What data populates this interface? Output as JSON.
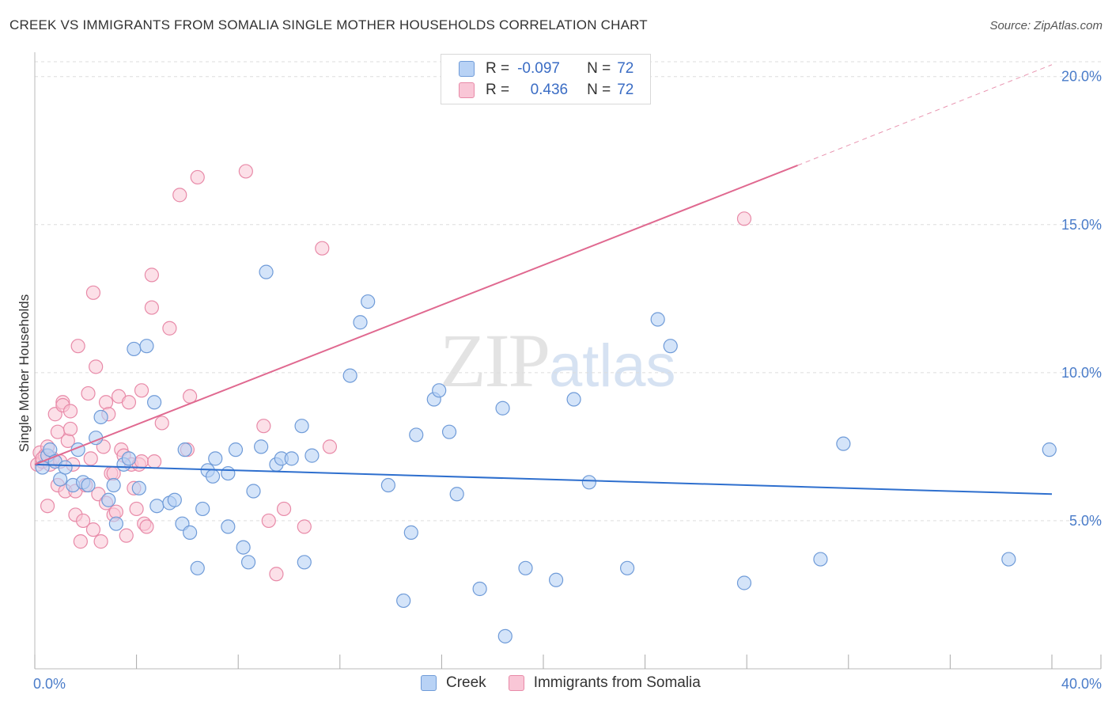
{
  "header": {
    "title": "CREEK VS IMMIGRANTS FROM SOMALIA SINGLE MOTHER HOUSEHOLDS CORRELATION CHART",
    "source": "Source: ZipAtlas.com"
  },
  "watermark": {
    "zip": "ZIP",
    "atlas": "atlas"
  },
  "legend": {
    "rows": [
      {
        "r_label": "R =",
        "r_value": "-0.097",
        "n_label": "N =",
        "n_value": "72"
      },
      {
        "r_label": "R =",
        "r_value": "0.436",
        "n_label": "N =",
        "n_value": "72"
      }
    ]
  },
  "colors": {
    "creek_fill": "#b8d2f5",
    "creek_stroke": "#6f9bd8",
    "creek_line": "#2e6fce",
    "somalia_fill": "#f9c6d6",
    "somalia_stroke": "#e88aa8",
    "somalia_line": "#e06990",
    "tick_text": "#4a7cc9",
    "grid": "#dddddd"
  },
  "chart_data": {
    "type": "scatter",
    "title": "CREEK VS IMMIGRANTS FROM SOMALIA SINGLE MOTHER HOUSEHOLDS CORRELATION CHART",
    "xlabel": "",
    "ylabel": "Single Mother Households",
    "xlim": [
      0,
      40
    ],
    "ylim": [
      0,
      20.5
    ],
    "x_tick_labels": [
      "0.0%",
      "40.0%"
    ],
    "y_ticks": [
      5,
      10,
      15,
      20
    ],
    "y_tick_labels": [
      "5.0%",
      "10.0%",
      "15.0%",
      "20.0%"
    ],
    "grid": true,
    "legend_position": "bottom",
    "series": [
      {
        "name": "Creek",
        "r": -0.097,
        "n": 72,
        "trend": {
          "x": [
            0,
            40
          ],
          "y": [
            6.9,
            5.9
          ]
        },
        "points": [
          [
            0.3,
            6.8
          ],
          [
            0.5,
            7.2
          ],
          [
            0.6,
            7.4
          ],
          [
            0.8,
            7.0
          ],
          [
            1.0,
            6.4
          ],
          [
            1.2,
            6.8
          ],
          [
            1.5,
            6.2
          ],
          [
            1.7,
            7.4
          ],
          [
            1.9,
            6.3
          ],
          [
            2.1,
            6.2
          ],
          [
            2.4,
            7.8
          ],
          [
            2.6,
            8.5
          ],
          [
            2.9,
            5.7
          ],
          [
            3.1,
            6.2
          ],
          [
            3.2,
            4.9
          ],
          [
            3.5,
            6.9
          ],
          [
            3.7,
            7.1
          ],
          [
            4.1,
            6.1
          ],
          [
            3.9,
            10.8
          ],
          [
            4.4,
            10.9
          ],
          [
            4.7,
            9.0
          ],
          [
            4.8,
            5.5
          ],
          [
            5.3,
            5.6
          ],
          [
            5.5,
            5.7
          ],
          [
            5.8,
            4.9
          ],
          [
            5.9,
            7.4
          ],
          [
            6.1,
            4.6
          ],
          [
            6.4,
            3.4
          ],
          [
            6.6,
            5.4
          ],
          [
            6.8,
            6.7
          ],
          [
            7.0,
            6.5
          ],
          [
            7.1,
            7.1
          ],
          [
            7.6,
            6.6
          ],
          [
            7.6,
            4.8
          ],
          [
            7.9,
            7.4
          ],
          [
            8.2,
            4.1
          ],
          [
            8.4,
            3.6
          ],
          [
            8.6,
            6.0
          ],
          [
            8.9,
            7.5
          ],
          [
            9.1,
            13.4
          ],
          [
            9.5,
            6.9
          ],
          [
            9.7,
            7.1
          ],
          [
            10.1,
            7.1
          ],
          [
            10.5,
            8.2
          ],
          [
            10.6,
            3.6
          ],
          [
            10.9,
            7.2
          ],
          [
            12.4,
            9.9
          ],
          [
            12.8,
            11.7
          ],
          [
            13.1,
            12.4
          ],
          [
            13.9,
            6.2
          ],
          [
            14.8,
            4.6
          ],
          [
            14.5,
            2.3
          ],
          [
            15.0,
            7.9
          ],
          [
            15.7,
            9.1
          ],
          [
            15.9,
            9.4
          ],
          [
            16.3,
            8.0
          ],
          [
            16.6,
            5.9
          ],
          [
            17.5,
            2.7
          ],
          [
            18.4,
            8.8
          ],
          [
            18.5,
            1.1
          ],
          [
            19.3,
            3.4
          ],
          [
            20.5,
            3.0
          ],
          [
            21.2,
            9.1
          ],
          [
            21.8,
            6.3
          ],
          [
            23.3,
            3.4
          ],
          [
            24.5,
            11.8
          ],
          [
            25.0,
            10.9
          ],
          [
            27.9,
            2.9
          ],
          [
            30.9,
            3.7
          ],
          [
            31.8,
            7.6
          ],
          [
            38.3,
            3.7
          ],
          [
            39.9,
            7.4
          ]
        ]
      },
      {
        "name": "Immigrants from Somalia",
        "r": 0.436,
        "n": 72,
        "trend": {
          "x": [
            0,
            30
          ],
          "y": [
            6.9,
            17.0
          ],
          "dashed_extension": {
            "x": [
              30,
              40
            ],
            "y": [
              17.0,
              20.4
            ]
          }
        },
        "points": [
          [
            0.1,
            6.9
          ],
          [
            0.2,
            7.3
          ],
          [
            0.3,
            7.0
          ],
          [
            0.4,
            7.2
          ],
          [
            0.5,
            5.5
          ],
          [
            0.5,
            7.5
          ],
          [
            0.6,
            6.9
          ],
          [
            0.7,
            7.1
          ],
          [
            0.8,
            8.6
          ],
          [
            0.9,
            6.2
          ],
          [
            0.9,
            8.0
          ],
          [
            1.0,
            7.0
          ],
          [
            1.1,
            9.0
          ],
          [
            1.1,
            8.9
          ],
          [
            1.2,
            6.0
          ],
          [
            1.3,
            7.7
          ],
          [
            1.4,
            8.1
          ],
          [
            1.4,
            8.7
          ],
          [
            1.5,
            6.9
          ],
          [
            1.6,
            5.2
          ],
          [
            1.6,
            6.0
          ],
          [
            1.7,
            10.9
          ],
          [
            1.8,
            4.3
          ],
          [
            1.9,
            5.0
          ],
          [
            2.0,
            6.2
          ],
          [
            2.1,
            9.3
          ],
          [
            2.2,
            7.1
          ],
          [
            2.3,
            12.7
          ],
          [
            2.3,
            4.7
          ],
          [
            2.4,
            10.2
          ],
          [
            2.5,
            5.9
          ],
          [
            2.6,
            4.3
          ],
          [
            2.7,
            7.5
          ],
          [
            2.8,
            9.0
          ],
          [
            2.8,
            5.6
          ],
          [
            2.9,
            8.6
          ],
          [
            3.0,
            6.6
          ],
          [
            3.1,
            5.2
          ],
          [
            3.1,
            6.6
          ],
          [
            3.2,
            5.3
          ],
          [
            3.3,
            9.2
          ],
          [
            3.4,
            7.4
          ],
          [
            3.5,
            7.2
          ],
          [
            3.6,
            4.5
          ],
          [
            3.7,
            9.0
          ],
          [
            3.8,
            6.9
          ],
          [
            3.9,
            6.1
          ],
          [
            4.0,
            5.4
          ],
          [
            4.1,
            6.9
          ],
          [
            4.2,
            7.0
          ],
          [
            4.2,
            9.4
          ],
          [
            4.3,
            4.9
          ],
          [
            4.4,
            4.8
          ],
          [
            4.6,
            13.3
          ],
          [
            4.6,
            12.2
          ],
          [
            4.7,
            7.0
          ],
          [
            5.0,
            8.3
          ],
          [
            5.3,
            11.5
          ],
          [
            5.7,
            16.0
          ],
          [
            6.0,
            7.4
          ],
          [
            6.1,
            9.2
          ],
          [
            6.4,
            16.6
          ],
          [
            8.3,
            16.8
          ],
          [
            9.0,
            8.2
          ],
          [
            9.2,
            5.0
          ],
          [
            9.5,
            3.2
          ],
          [
            9.8,
            5.4
          ],
          [
            10.6,
            4.8
          ],
          [
            11.3,
            14.2
          ],
          [
            11.6,
            7.5
          ],
          [
            27.9,
            15.2
          ],
          [
            0.3,
            7.1
          ]
        ]
      }
    ]
  }
}
